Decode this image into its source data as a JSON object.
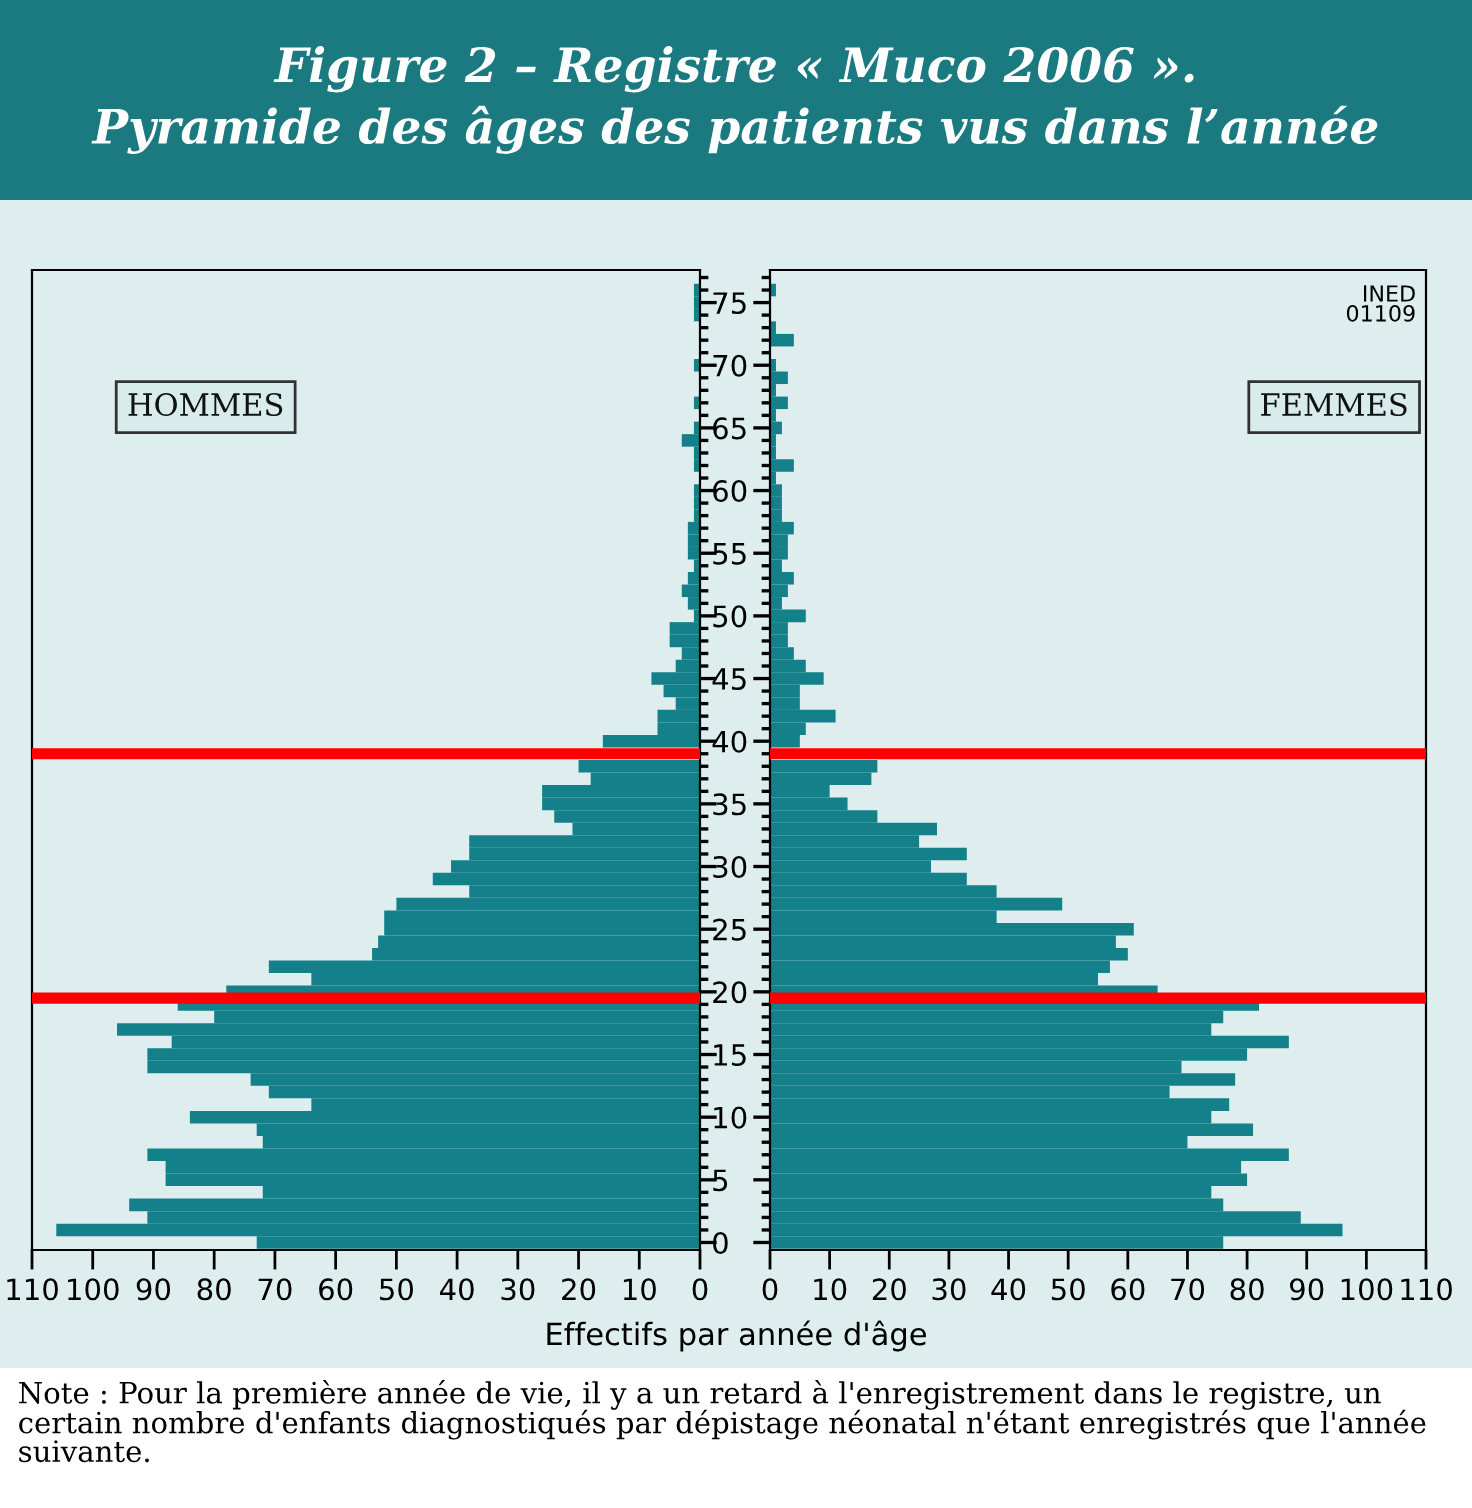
{
  "chart_data": [
    {
      "type": "bar",
      "orientation": "horizontal",
      "title": "Figure 2 – Registre « Muco 2006 ».\nPyramide des âges des patients vus dans l’année",
      "xlabel": "Effectifs par année d'âge",
      "annotations": [
        "Note : Pour la première année de vie, il y a un retard à l'enregistrement dans le registre, un certain nombre d'enfants diagnostiqués par dépistage néonatal n'étant enregistrés que l'année suivante."
      ],
      "x": [
        0,
        1,
        2,
        3,
        4,
        5,
        6,
        7,
        8,
        9,
        10,
        11,
        12,
        13,
        14,
        15,
        16,
        17,
        18,
        19,
        20,
        21,
        22,
        23,
        24,
        25,
        26,
        27,
        28,
        29,
        30,
        31,
        32,
        33,
        34,
        35,
        36,
        37,
        38,
        39,
        40,
        41,
        42,
        43,
        44,
        45,
        46,
        47,
        48,
        49,
        50,
        51,
        52,
        53,
        54,
        55,
        56,
        57,
        58,
        59,
        60,
        61,
        62,
        63,
        64,
        65,
        66,
        67,
        68,
        69,
        70,
        71,
        72,
        73,
        74,
        75,
        76
      ],
      "series": [
        {
          "name": "HOMMES",
          "color": "#13808a",
          "values": [
            73,
            106,
            91,
            94,
            72,
            88,
            88,
            91,
            72,
            73,
            84,
            64,
            71,
            74,
            91,
            91,
            87,
            96,
            80,
            86,
            78,
            64,
            71,
            54,
            53,
            52,
            52,
            50,
            38,
            44,
            41,
            38,
            38,
            21,
            24,
            26,
            26,
            18,
            20,
            null,
            16,
            7,
            7,
            4,
            6,
            8,
            4,
            3,
            5,
            5,
            1,
            2,
            3,
            2,
            1,
            2,
            2,
            2,
            1,
            1,
            1,
            0,
            1,
            1,
            3,
            1,
            0,
            1,
            0,
            0,
            1,
            0,
            0,
            0,
            1,
            1,
            1
          ]
        }
      ],
      "xlim": [
        110,
        0
      ],
      "xticks": [
        110,
        100,
        90,
        80,
        70,
        60,
        50,
        40,
        30,
        20,
        10,
        0
      ],
      "ylim": [
        -0.6,
        77.6
      ],
      "yticks": [
        0,
        {
          "value": 1,
          "label": null
        },
        {
          "value": 2,
          "label": null
        },
        {
          "value": 3,
          "label": null
        },
        {
          "value": 4,
          "label": null
        },
        5,
        {
          "value": 6,
          "label": null
        },
        {
          "value": 7,
          "label": null
        },
        {
          "value": 8,
          "label": null
        },
        {
          "value": 9,
          "label": null
        },
        10,
        {
          "value": 11,
          "label": null
        },
        {
          "value": 12,
          "label": null
        },
        {
          "value": 13,
          "label": null
        },
        {
          "value": 14,
          "label": null
        },
        15,
        {
          "value": 16,
          "label": null
        },
        {
          "value": 17,
          "label": null
        },
        {
          "value": 18,
          "label": null
        },
        {
          "value": 19,
          "label": null
        },
        20,
        {
          "value": 21,
          "label": null
        },
        {
          "value": 22,
          "label": null
        },
        {
          "value": 23,
          "label": null
        },
        {
          "value": 24,
          "label": null
        },
        25,
        {
          "value": 26,
          "label": null
        },
        {
          "value": 27,
          "label": null
        },
        {
          "value": 28,
          "label": null
        },
        {
          "value": 29,
          "label": null
        },
        30,
        {
          "value": 31,
          "label": null
        },
        {
          "value": 32,
          "label": null
        },
        {
          "value": 33,
          "label": null
        },
        {
          "value": 34,
          "label": null
        },
        35,
        {
          "value": 36,
          "label": null
        },
        {
          "value": 37,
          "label": null
        },
        {
          "value": 38,
          "label": null
        },
        {
          "value": 39,
          "label": null
        },
        40,
        {
          "value": 41,
          "label": null
        },
        {
          "value": 42,
          "label": null
        },
        {
          "value": 43,
          "label": null
        },
        {
          "value": 44,
          "label": null
        },
        45,
        {
          "value": 46,
          "label": null
        },
        {
          "value": 47,
          "label": null
        },
        {
          "value": 48,
          "label": null
        },
        {
          "value": 49,
          "label": null
        },
        50,
        {
          "value": 51,
          "label": null
        },
        {
          "value": 52,
          "label": null
        },
        {
          "value": 53,
          "label": null
        },
        {
          "value": 54,
          "label": null
        },
        55,
        {
          "value": 56,
          "label": null
        },
        {
          "value": 57,
          "label": null
        },
        {
          "value": 58,
          "label": null
        },
        {
          "value": 59,
          "label": null
        },
        60,
        {
          "value": 61,
          "label": null
        },
        {
          "value": 62,
          "label": null
        },
        {
          "value": 63,
          "label": null
        },
        {
          "value": 64,
          "label": null
        },
        65,
        {
          "value": 66,
          "label": null
        },
        {
          "value": 67,
          "label": null
        },
        {
          "value": 68,
          "label": null
        },
        {
          "value": 69,
          "label": null
        },
        70,
        {
          "value": 71,
          "label": null
        },
        {
          "value": 72,
          "label": null
        },
        {
          "value": 73,
          "label": null
        },
        {
          "value": 74,
          "label": null
        },
        75,
        {
          "value": 76,
          "label": null
        },
        {
          "value": 77,
          "label": null
        }
      ],
      "ref_lines": [
        {
          "axis": "y",
          "value": 39,
          "color": "#ff0000"
        },
        {
          "axis": "y",
          "value": 19.5,
          "color": "#ff0000"
        }
      ],
      "legend": false,
      "grid": false
    },
    {
      "type": "bar",
      "orientation": "horizontal",
      "annotations": [
        "INED\n01109"
      ],
      "x": [
        0,
        1,
        2,
        3,
        4,
        5,
        6,
        7,
        8,
        9,
        10,
        11,
        12,
        13,
        14,
        15,
        16,
        17,
        18,
        19,
        20,
        21,
        22,
        23,
        24,
        25,
        26,
        27,
        28,
        29,
        30,
        31,
        32,
        33,
        34,
        35,
        36,
        37,
        38,
        39,
        40,
        41,
        42,
        43,
        44,
        45,
        46,
        47,
        48,
        49,
        50,
        51,
        52,
        53,
        54,
        55,
        56,
        57,
        58,
        59,
        60,
        61,
        62,
        63,
        64,
        65,
        66,
        67,
        68,
        69,
        70,
        71,
        72,
        73,
        74,
        75,
        76
      ],
      "series": [
        {
          "name": "FEMMES",
          "color": "#13808a",
          "values": [
            76,
            96,
            89,
            76,
            74,
            80,
            79,
            87,
            70,
            81,
            74,
            77,
            67,
            78,
            69,
            80,
            87,
            74,
            76,
            82,
            65,
            55,
            57,
            60,
            58,
            61,
            38,
            49,
            38,
            33,
            27,
            33,
            25,
            28,
            18,
            13,
            10,
            17,
            18,
            null,
            5,
            6,
            11,
            5,
            5,
            9,
            6,
            4,
            3,
            3,
            6,
            2,
            3,
            4,
            2,
            3,
            3,
            4,
            2,
            2,
            2,
            1,
            4,
            1,
            1,
            2,
            1,
            3,
            1,
            3,
            1,
            0,
            4,
            1,
            0,
            0,
            1
          ]
        }
      ],
      "xlim": [
        0,
        110
      ],
      "xticks": [
        0,
        10,
        20,
        30,
        40,
        50,
        60,
        70,
        80,
        90,
        100,
        110
      ],
      "ylim": [
        -0.6,
        77.6
      ],
      "yticks": [
        0,
        {
          "value": 1,
          "label": null
        },
        {
          "value": 2,
          "label": null
        },
        {
          "value": 3,
          "label": null
        },
        {
          "value": 4,
          "label": null
        },
        5,
        {
          "value": 6,
          "label": null
        },
        {
          "value": 7,
          "label": null
        },
        {
          "value": 8,
          "label": null
        },
        {
          "value": 9,
          "label": null
        },
        10,
        {
          "value": 11,
          "label": null
        },
        {
          "value": 12,
          "label": null
        },
        {
          "value": 13,
          "label": null
        },
        {
          "value": 14,
          "label": null
        },
        15,
        {
          "value": 16,
          "label": null
        },
        {
          "value": 17,
          "label": null
        },
        {
          "value": 18,
          "label": null
        },
        {
          "value": 19,
          "label": null
        },
        20,
        {
          "value": 21,
          "label": null
        },
        {
          "value": 22,
          "label": null
        },
        {
          "value": 23,
          "label": null
        },
        {
          "value": 24,
          "label": null
        },
        25,
        {
          "value": 26,
          "label": null
        },
        {
          "value": 27,
          "label": null
        },
        {
          "value": 28,
          "label": null
        },
        {
          "value": 29,
          "label": null
        },
        30,
        {
          "value": 31,
          "label": null
        },
        {
          "value": 32,
          "label": null
        },
        {
          "value": 33,
          "label": null
        },
        {
          "value": 34,
          "label": null
        },
        35,
        {
          "value": 36,
          "label": null
        },
        {
          "value": 37,
          "label": null
        },
        {
          "value": 38,
          "label": null
        },
        {
          "value": 39,
          "label": null
        },
        40,
        {
          "value": 41,
          "label": null
        },
        {
          "value": 42,
          "label": null
        },
        {
          "value": 43,
          "label": null
        },
        {
          "value": 44,
          "label": null
        },
        45,
        {
          "value": 46,
          "label": null
        },
        {
          "value": 47,
          "label": null
        },
        {
          "value": 48,
          "label": null
        },
        {
          "value": 49,
          "label": null
        },
        50,
        {
          "value": 51,
          "label": null
        },
        {
          "value": 52,
          "label": null
        },
        {
          "value": 53,
          "label": null
        },
        {
          "value": 54,
          "label": null
        },
        55,
        {
          "value": 56,
          "label": null
        },
        {
          "value": 57,
          "label": null
        },
        {
          "value": 58,
          "label": null
        },
        {
          "value": 59,
          "label": null
        },
        60,
        {
          "value": 61,
          "label": null
        },
        {
          "value": 62,
          "label": null
        },
        {
          "value": 63,
          "label": null
        },
        {
          "value": 64,
          "label": null
        },
        65,
        {
          "value": 66,
          "label": null
        },
        {
          "value": 67,
          "label": null
        },
        {
          "value": 68,
          "label": null
        },
        {
          "value": 69,
          "label": null
        },
        70,
        {
          "value": 71,
          "label": null
        },
        {
          "value": 72,
          "label": null
        },
        {
          "value": 73,
          "label": null
        },
        {
          "value": 74,
          "label": null
        },
        75,
        {
          "value": 76,
          "label": null
        },
        {
          "value": 77,
          "label": null
        }
      ],
      "tick_labels": "x",
      "ref_lines": [
        {
          "axis": "y",
          "value": 39,
          "color": "#ff0000"
        },
        {
          "axis": "y",
          "value": 19.5,
          "color": "#ff0000"
        }
      ],
      "legend": false,
      "grid": false
    }
  ]
}
